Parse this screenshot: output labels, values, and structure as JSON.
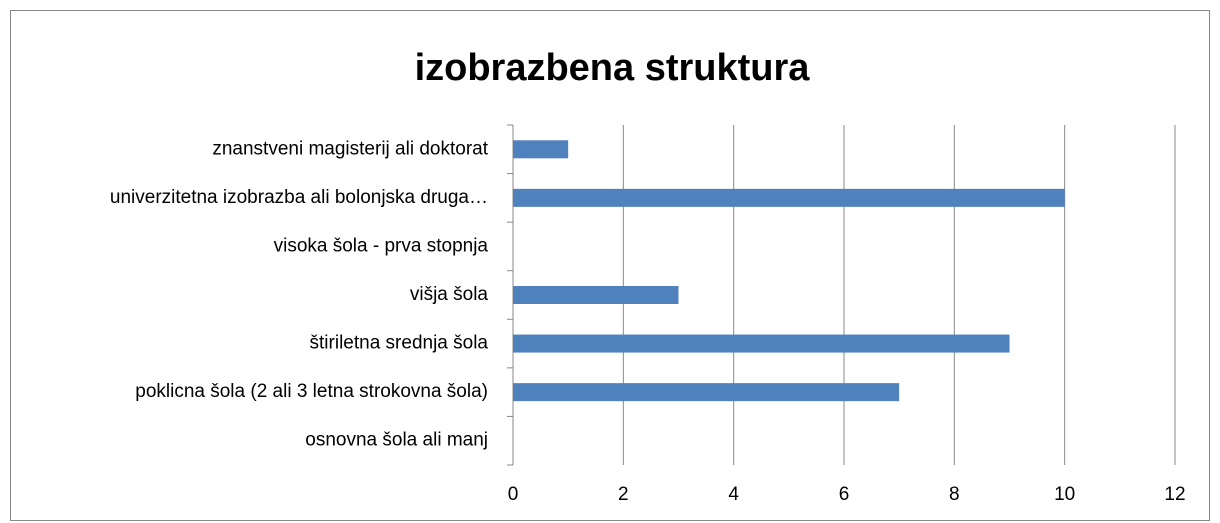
{
  "chart_data": {
    "type": "bar",
    "orientation": "horizontal",
    "title": "izobrazbena struktura",
    "categories": [
      "znanstveni magisterij ali doktorat",
      "univerzitetna izobrazba ali bolonjska druga…",
      "visoka šola - prva stopnja",
      "višja šola",
      "štiriletna srednja šola",
      "poklicna šola (2 ali 3 letna strokovna šola)",
      "osnovna šola ali manj"
    ],
    "values": [
      1,
      10,
      0,
      3,
      9,
      7,
      0
    ],
    "color": "#4f81bd",
    "xlim": [
      0,
      12
    ],
    "xticks": [
      0,
      2,
      4,
      6,
      8,
      10,
      12
    ],
    "grid": true
  }
}
